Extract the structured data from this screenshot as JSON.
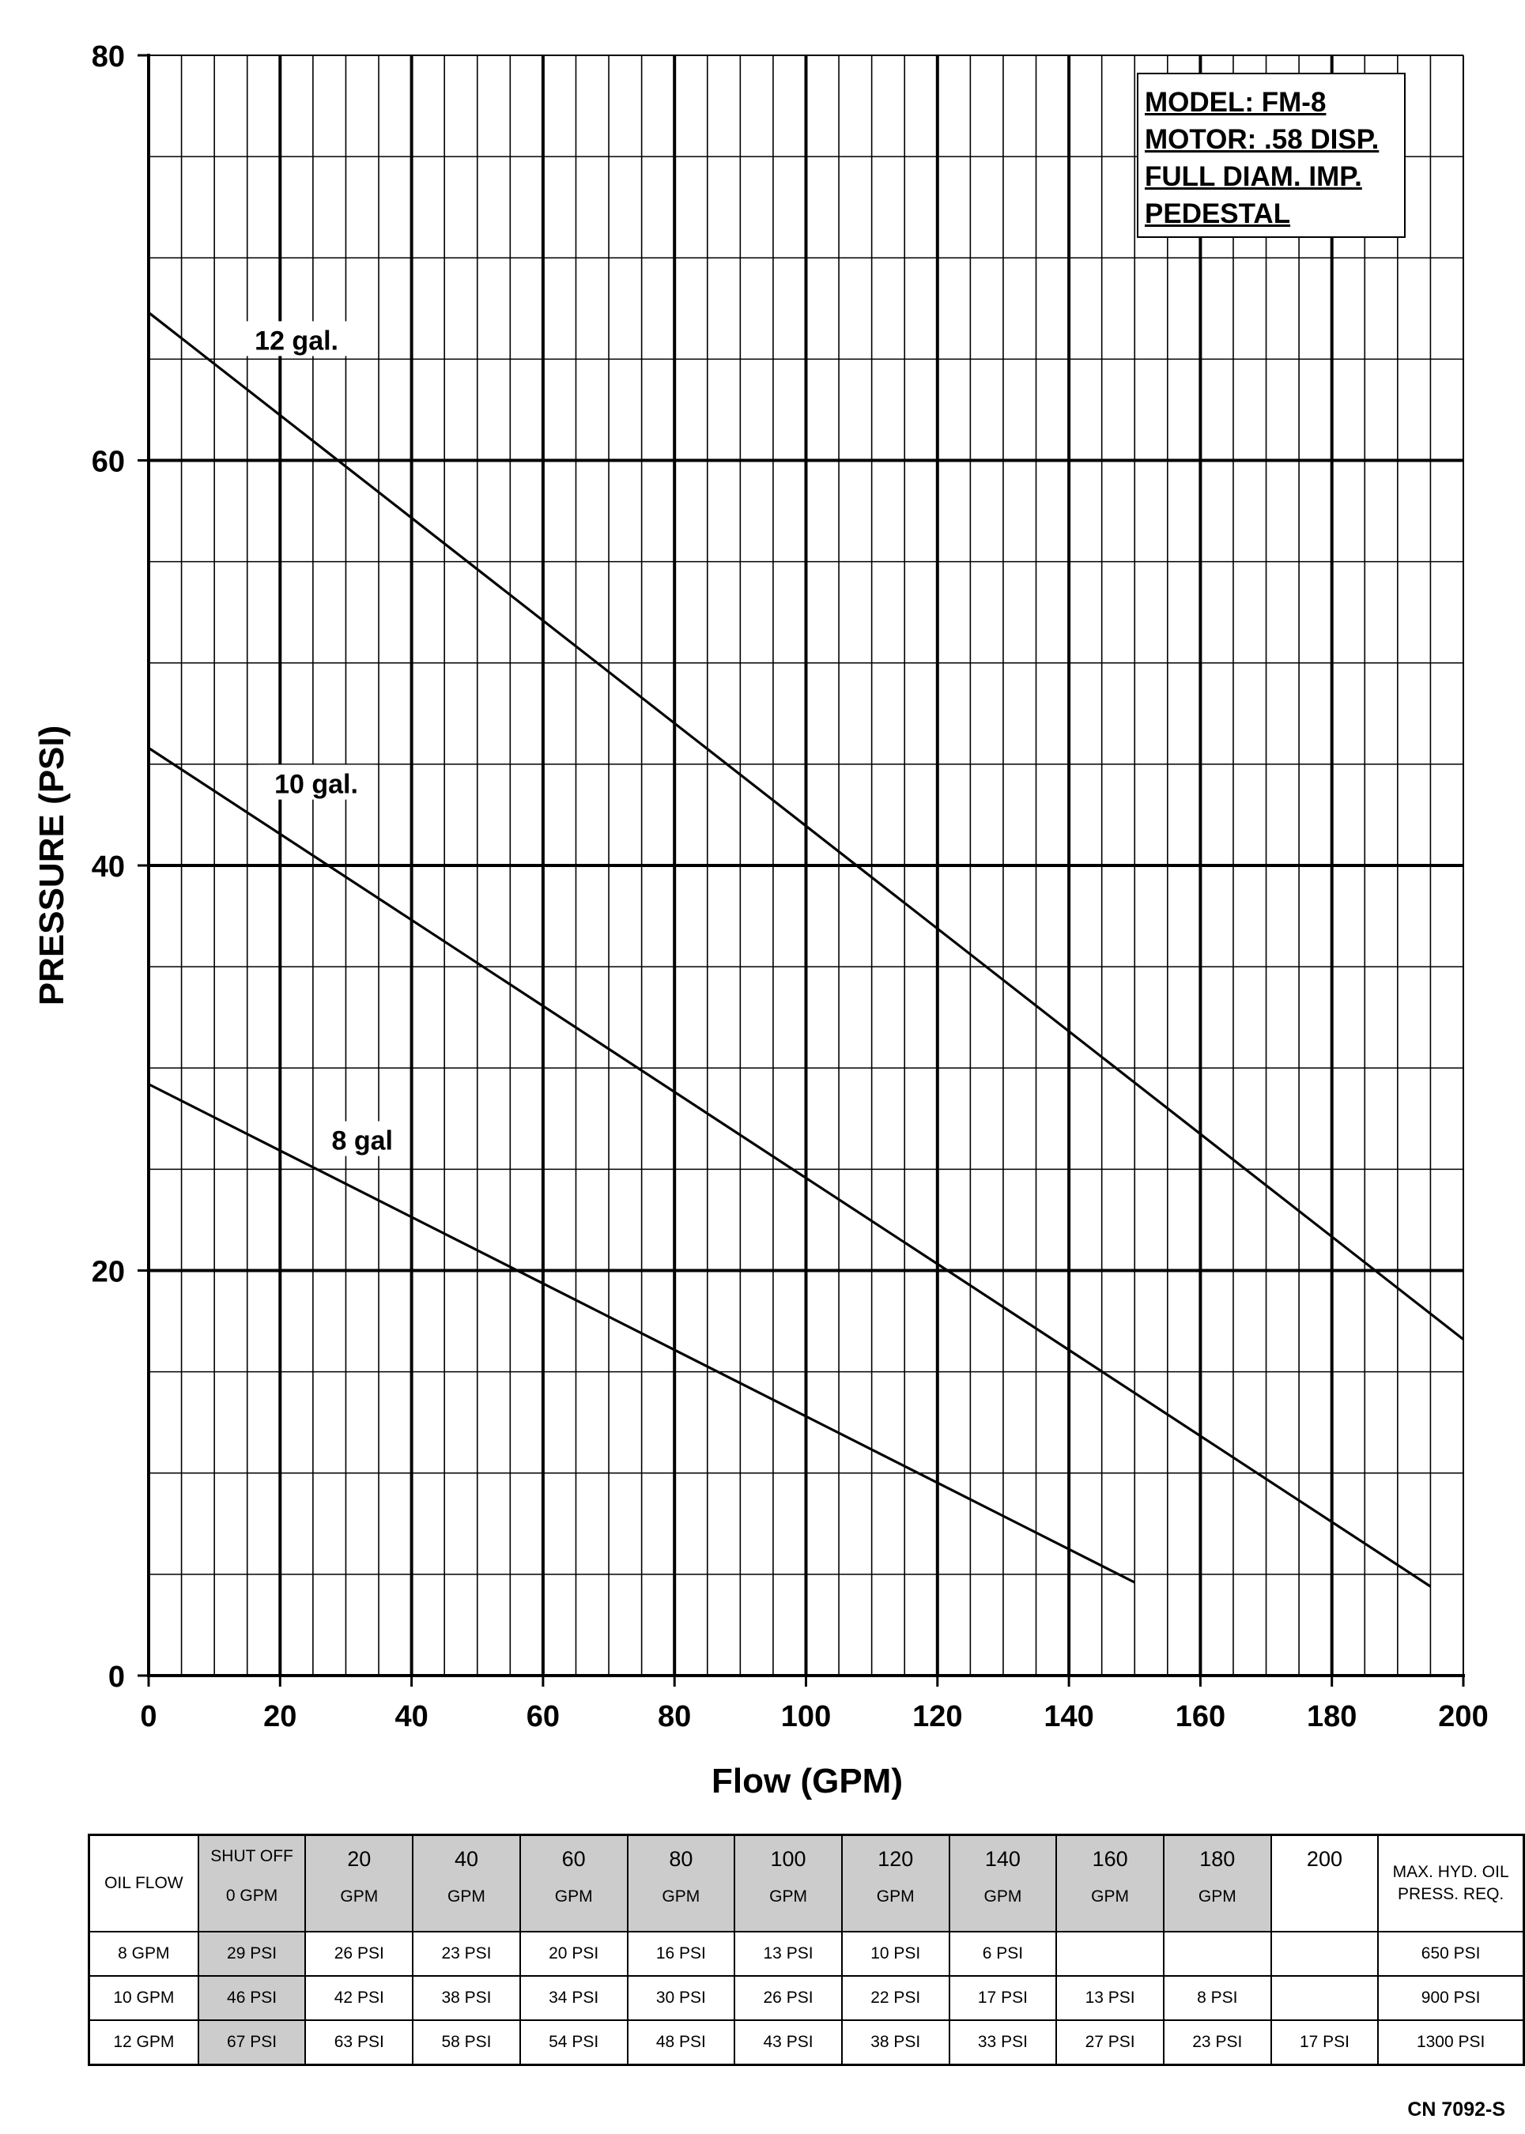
{
  "chart_data": {
    "type": "line",
    "xlabel": "Flow (GPM)",
    "ylabel": "PRESSURE (PSI)",
    "xlim": [
      0,
      200
    ],
    "ylim": [
      0,
      80
    ],
    "x_ticks": [
      "0",
      "20",
      "40",
      "60",
      "80",
      "100",
      "120",
      "140",
      "160",
      "180",
      "200"
    ],
    "y_ticks": [
      "0",
      "20",
      "40",
      "60",
      "80"
    ],
    "grid": true,
    "series": [
      {
        "name": "12 gal.",
        "x": [
          0,
          200
        ],
        "y": [
          67.3,
          16.6
        ]
      },
      {
        "name": "10 gal.",
        "x": [
          0,
          195
        ],
        "y": [
          45.8,
          4.4
        ]
      },
      {
        "name": "8 gal",
        "x": [
          0,
          150
        ],
        "y": [
          29.2,
          4.6
        ]
      }
    ],
    "info_box": [
      "MODEL: FM-8",
      "MOTOR: .58 DISP.",
      "FULL DIAM. IMP.",
      "PEDESTAL"
    ]
  },
  "table": {
    "corner_label": "OIL FLOW",
    "columns": [
      {
        "top": "SHUT OFF",
        "bottom": "0 GPM"
      },
      {
        "top": "20",
        "bottom": "GPM"
      },
      {
        "top": "40",
        "bottom": "GPM"
      },
      {
        "top": "60",
        "bottom": "GPM"
      },
      {
        "top": "80",
        "bottom": "GPM"
      },
      {
        "top": "100",
        "bottom": "GPM"
      },
      {
        "top": "120",
        "bottom": "GPM"
      },
      {
        "top": "140",
        "bottom": "GPM"
      },
      {
        "top": "160",
        "bottom": "GPM"
      },
      {
        "top": "180",
        "bottom": "GPM"
      },
      {
        "top": "200",
        "bottom": ""
      }
    ],
    "max_header_line1": "MAX. HYD. OIL",
    "max_header_line2": "PRESS. REQ.",
    "rows": [
      {
        "label": "8 GPM",
        "cells": [
          "29 PSI",
          "26 PSI",
          "23 PSI",
          "20 PSI",
          "16 PSI",
          "13 PSI",
          "10 PSI",
          "6 PSI",
          "",
          "",
          ""
        ],
        "max": "650 PSI"
      },
      {
        "label": "10 GPM",
        "cells": [
          "46 PSI",
          "42 PSI",
          "38 PSI",
          "34 PSI",
          "30 PSI",
          "26 PSI",
          "22 PSI",
          "17 PSI",
          "13 PSI",
          "8 PSI",
          ""
        ],
        "max": "900 PSI"
      },
      {
        "label": "12 GPM",
        "cells": [
          "67 PSI",
          "63 PSI",
          "58 PSI",
          "54 PSI",
          "48 PSI",
          "43 PSI",
          "38 PSI",
          "33 PSI",
          "27 PSI",
          "23 PSI",
          "17 PSI"
        ],
        "max": "1300 PSI"
      }
    ]
  },
  "doc_code": "CN 7092-S"
}
